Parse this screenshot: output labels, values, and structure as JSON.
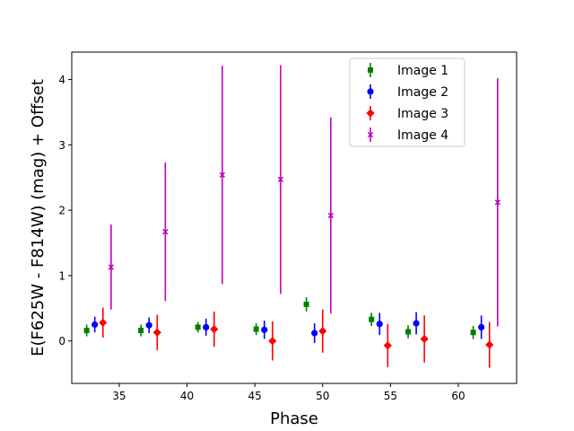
{
  "chart_data": {
    "type": "scatter",
    "title": "",
    "xlabel": "Phase",
    "ylabel": "E(F625W - F814W) (mag) + Offset",
    "xlim": [
      31.5,
      64.3
    ],
    "ylim": [
      -0.65,
      4.42
    ],
    "xticks": [
      35,
      40,
      45,
      50,
      55,
      60
    ],
    "yticks": [
      0,
      1,
      2,
      3,
      4
    ],
    "grid": false,
    "legend_position": "top-right",
    "series": [
      {
        "name": "Image 1",
        "color": "#008000",
        "marker": "square",
        "points": [
          {
            "x": 32.6,
            "y": 0.16,
            "err": 0.09
          },
          {
            "x": 36.6,
            "y": 0.16,
            "err": 0.09
          },
          {
            "x": 40.8,
            "y": 0.21,
            "err": 0.08
          },
          {
            "x": 45.1,
            "y": 0.18,
            "err": 0.09
          },
          {
            "x": 48.8,
            "y": 0.56,
            "err": 0.11
          },
          {
            "x": 53.6,
            "y": 0.33,
            "err": 0.1
          },
          {
            "x": 56.3,
            "y": 0.14,
            "err": 0.1
          },
          {
            "x": 61.1,
            "y": 0.13,
            "err": 0.1
          }
        ]
      },
      {
        "name": "Image 2",
        "color": "#0000ff",
        "marker": "circle",
        "points": [
          {
            "x": 33.2,
            "y": 0.25,
            "err": 0.12
          },
          {
            "x": 37.2,
            "y": 0.24,
            "err": 0.12
          },
          {
            "x": 41.4,
            "y": 0.21,
            "err": 0.13
          },
          {
            "x": 45.7,
            "y": 0.17,
            "err": 0.14
          },
          {
            "x": 49.4,
            "y": 0.12,
            "err": 0.15
          },
          {
            "x": 54.2,
            "y": 0.26,
            "err": 0.17
          },
          {
            "x": 56.9,
            "y": 0.27,
            "err": 0.17
          },
          {
            "x": 61.7,
            "y": 0.21,
            "err": 0.18
          }
        ]
      },
      {
        "name": "Image 3",
        "color": "#ff0000",
        "marker": "diamond",
        "points": [
          {
            "x": 33.8,
            "y": 0.28,
            "err": 0.23
          },
          {
            "x": 37.8,
            "y": 0.13,
            "err": 0.27
          },
          {
            "x": 42.0,
            "y": 0.18,
            "err": 0.27
          },
          {
            "x": 46.3,
            "y": 0.0,
            "err": 0.3
          },
          {
            "x": 50.0,
            "y": 0.15,
            "err": 0.33
          },
          {
            "x": 54.8,
            "y": -0.07,
            "err": 0.33
          },
          {
            "x": 57.5,
            "y": 0.03,
            "err": 0.36
          },
          {
            "x": 62.3,
            "y": -0.06,
            "err": 0.35
          }
        ]
      },
      {
        "name": "Image 4",
        "color": "#bf00bf",
        "marker": "x",
        "points": [
          {
            "x": 34.4,
            "y": 1.13,
            "err": 0.65
          },
          {
            "x": 38.4,
            "y": 1.67,
            "err": 1.06
          },
          {
            "x": 42.6,
            "y": 2.54,
            "err": 1.67
          },
          {
            "x": 46.9,
            "y": 2.47,
            "err": 1.75
          },
          {
            "x": 50.6,
            "y": 1.92,
            "err": 1.5
          },
          {
            "x": 62.9,
            "y": 2.12,
            "err": 1.9
          }
        ]
      }
    ]
  }
}
